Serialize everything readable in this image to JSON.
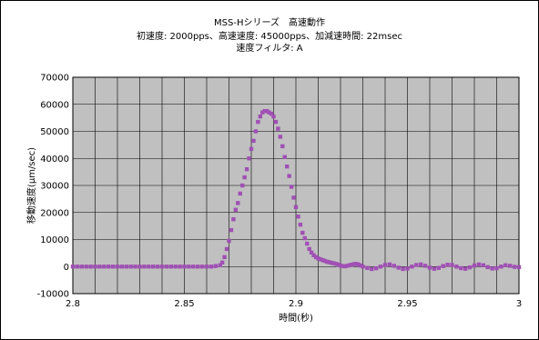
{
  "chart_data": {
    "type": "scatter",
    "title_lines": [
      "MSS-Hシリーズ　高速動作",
      "初速度: 2000pps、高速速度: 45000pps、加減速時間: 22msec",
      "速度フィルタ: A"
    ],
    "xlabel": "時間(秒)",
    "ylabel": "移動速度(μm/sec)",
    "xlim": [
      2.8,
      3.0
    ],
    "ylim": [
      -10000,
      70000
    ],
    "x_ticks": [
      "2.8",
      "2.85",
      "2.9",
      "2.95",
      "3"
    ],
    "y_ticks": [
      "-10000",
      "0",
      "10000",
      "20000",
      "30000",
      "40000",
      "50000",
      "60000",
      "70000"
    ],
    "grid": true,
    "legend": "none",
    "colors": {
      "plot_bg": "#c0c0c0",
      "grid": "#000000",
      "marker": "#a050b4"
    },
    "series": [
      {
        "x": [
          2.8,
          2.802,
          2.804,
          2.806,
          2.808,
          2.81,
          2.812,
          2.814,
          2.816,
          2.818,
          2.82,
          2.822,
          2.824,
          2.826,
          2.828,
          2.83,
          2.832,
          2.834,
          2.836,
          2.838,
          2.84,
          2.842,
          2.844,
          2.846,
          2.848,
          2.85,
          2.852,
          2.854,
          2.856,
          2.858,
          2.86,
          2.862,
          2.864,
          2.866,
          2.867,
          2.868,
          2.869,
          2.87,
          2.871,
          2.872,
          2.873,
          2.874,
          2.875,
          2.876,
          2.877,
          2.878,
          2.879,
          2.88,
          2.881,
          2.882,
          2.883,
          2.884,
          2.885,
          2.886,
          2.887,
          2.888,
          2.889,
          2.89,
          2.891,
          2.892,
          2.893,
          2.894,
          2.895,
          2.896,
          2.897,
          2.898,
          2.899,
          2.9,
          2.901,
          2.902,
          2.903,
          2.904,
          2.905,
          2.906,
          2.907,
          2.908,
          2.909,
          2.91,
          2.911,
          2.912,
          2.913,
          2.914,
          2.915,
          2.916,
          2.917,
          2.918,
          2.919,
          2.92,
          2.921,
          2.922,
          2.923,
          2.924,
          2.925,
          2.926,
          2.927,
          2.928,
          2.929,
          2.93,
          2.932,
          2.934,
          2.936,
          2.938,
          2.94,
          2.942,
          2.944,
          2.946,
          2.948,
          2.95,
          2.952,
          2.954,
          2.956,
          2.958,
          2.96,
          2.962,
          2.964,
          2.966,
          2.968,
          2.97,
          2.972,
          2.974,
          2.976,
          2.978,
          2.98,
          2.982,
          2.984,
          2.986,
          2.988,
          2.99,
          2.992,
          2.994,
          2.996,
          2.998,
          3.0
        ],
        "y": [
          0,
          0,
          0,
          0,
          0,
          0,
          0,
          0,
          0,
          0,
          0,
          0,
          0,
          0,
          0,
          0,
          0,
          0,
          0,
          0,
          0,
          0,
          0,
          0,
          0,
          0,
          0,
          0,
          0,
          0,
          0,
          0,
          200,
          500,
          1500,
          3500,
          6500,
          9500,
          13500,
          17500,
          21000,
          23500,
          27000,
          30000,
          33000,
          36000,
          40000,
          43500,
          46500,
          50000,
          53500,
          55500,
          57000,
          57500,
          57500,
          57000,
          56500,
          55500,
          53500,
          51000,
          48000,
          44500,
          40500,
          37000,
          33500,
          29500,
          25500,
          22000,
          18500,
          15500,
          12500,
          10500,
          8500,
          6500,
          5200,
          4200,
          3500,
          3000,
          2700,
          2400,
          2100,
          1800,
          1600,
          1400,
          1200,
          1000,
          700,
          400,
          200,
          100,
          300,
          500,
          700,
          900,
          1000,
          800,
          400,
          0,
          -500,
          -900,
          -600,
          0,
          600,
          800,
          300,
          -400,
          -900,
          -700,
          0,
          600,
          800,
          300,
          -400,
          -800,
          -500,
          200,
          700,
          600,
          0,
          -600,
          -800,
          -300,
          400,
          800,
          500,
          -200,
          -700,
          -600,
          0,
          500,
          300,
          -100,
          -200
        ]
      }
    ]
  }
}
